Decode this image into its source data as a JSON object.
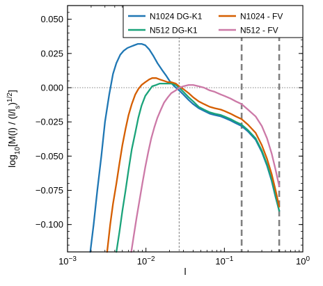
{
  "chart_data": {
    "type": "line",
    "xlabel": "l",
    "ylabel": "log10[M(l) / (l/ls)^1/2]",
    "x_scale": "log",
    "xlim": [
      0.001,
      1
    ],
    "ylim": [
      -0.12,
      0.06
    ],
    "x_tick_labels": [
      {
        "base": "10",
        "exp": "−3",
        "value": 0.001
      },
      {
        "base": "10",
        "exp": "−2",
        "value": 0.01
      },
      {
        "base": "10",
        "exp": "−1",
        "value": 0.1
      },
      {
        "base": "10",
        "exp": "0",
        "value": 1
      }
    ],
    "y_ticks": [
      0.05,
      0.025,
      0.0,
      -0.025,
      -0.05,
      -0.075,
      -0.1
    ],
    "y_tick_labels": [
      "0.050",
      "0.025",
      "0.000",
      "−0.025",
      "−0.050",
      "−0.075",
      "−0.100"
    ],
    "reference_lines": [
      {
        "orientation": "horizontal",
        "value": 0.0,
        "style": "dotted",
        "color": "#808080"
      },
      {
        "orientation": "vertical",
        "value": 0.0265,
        "style": "dashed-thin",
        "color": "#808080"
      },
      {
        "orientation": "vertical",
        "value": 0.166,
        "style": "dashed-thick",
        "color": "#808080"
      },
      {
        "orientation": "vertical",
        "value": 0.5,
        "style": "dashed-thick",
        "color": "#808080"
      }
    ],
    "legend": {
      "placement": "top-right",
      "columns": 2
    },
    "series": [
      {
        "name": "N1024 DG-K1",
        "color": "#1f77b4",
        "x": [
          0.00195,
          0.00215,
          0.0024,
          0.0027,
          0.003,
          0.0034,
          0.0038,
          0.0042,
          0.0047,
          0.0052,
          0.0058,
          0.0064,
          0.0071,
          0.0079,
          0.0088,
          0.0098,
          0.011,
          0.0125,
          0.014,
          0.016,
          0.018,
          0.02,
          0.023,
          0.0265,
          0.03,
          0.035,
          0.04,
          0.047,
          0.055,
          0.065,
          0.075,
          0.09,
          0.1,
          0.12,
          0.14,
          0.166,
          0.2,
          0.25,
          0.3,
          0.35,
          0.4,
          0.45,
          0.5
        ],
        "y": [
          -0.12,
          -0.1,
          -0.075,
          -0.05,
          -0.025,
          -0.005,
          0.01,
          0.018,
          0.024,
          0.027,
          0.029,
          0.03,
          0.031,
          0.032,
          0.032,
          0.031,
          0.028,
          0.023,
          0.018,
          0.013,
          0.009,
          0.005,
          0.001,
          -0.002,
          -0.005,
          -0.009,
          -0.012,
          -0.015,
          -0.017,
          -0.019,
          -0.02,
          -0.021,
          -0.022,
          -0.024,
          -0.026,
          -0.028,
          -0.032,
          -0.038,
          -0.047,
          -0.057,
          -0.068,
          -0.08,
          -0.09
        ]
      },
      {
        "name": "N512 DG-K1",
        "color": "#1aa37a",
        "x": [
          0.0042,
          0.0046,
          0.005,
          0.0055,
          0.006,
          0.0066,
          0.0073,
          0.008,
          0.0088,
          0.0098,
          0.011,
          0.012,
          0.0135,
          0.015,
          0.017,
          0.019,
          0.021,
          0.024,
          0.0265,
          0.03,
          0.035,
          0.04,
          0.047,
          0.055,
          0.065,
          0.075,
          0.09,
          0.1,
          0.12,
          0.14,
          0.166,
          0.2,
          0.25,
          0.3,
          0.35,
          0.4,
          0.45,
          0.5
        ],
        "y": [
          -0.12,
          -0.105,
          -0.09,
          -0.075,
          -0.06,
          -0.045,
          -0.033,
          -0.022,
          -0.013,
          -0.006,
          -0.002,
          0.001,
          0.002,
          0.003,
          0.003,
          0.003,
          0.003,
          0.002,
          0.0,
          -0.003,
          -0.007,
          -0.01,
          -0.014,
          -0.016,
          -0.018,
          -0.019,
          -0.02,
          -0.021,
          -0.023,
          -0.025,
          -0.027,
          -0.031,
          -0.037,
          -0.046,
          -0.056,
          -0.067,
          -0.079,
          -0.09
        ]
      },
      {
        "name": "N1024 - FV",
        "color": "#d55e00",
        "x": [
          0.0032,
          0.0035,
          0.0038,
          0.0042,
          0.0046,
          0.005,
          0.0055,
          0.006,
          0.0066,
          0.0073,
          0.008,
          0.0088,
          0.0098,
          0.011,
          0.012,
          0.0135,
          0.015,
          0.017,
          0.019,
          0.021,
          0.024,
          0.0265,
          0.03,
          0.035,
          0.04,
          0.047,
          0.055,
          0.065,
          0.075,
          0.09,
          0.1,
          0.12,
          0.14,
          0.166,
          0.2,
          0.25,
          0.3,
          0.35,
          0.4,
          0.45,
          0.5
        ],
        "y": [
          -0.12,
          -0.1,
          -0.085,
          -0.07,
          -0.055,
          -0.042,
          -0.03,
          -0.02,
          -0.012,
          -0.005,
          -0.001,
          0.002,
          0.004,
          0.006,
          0.007,
          0.007,
          0.006,
          0.005,
          0.004,
          0.004,
          0.003,
          0.001,
          -0.001,
          -0.004,
          -0.007,
          -0.01,
          -0.012,
          -0.014,
          -0.015,
          -0.016,
          -0.017,
          -0.019,
          -0.021,
          -0.023,
          -0.027,
          -0.033,
          -0.042,
          -0.052,
          -0.063,
          -0.075,
          -0.087
        ]
      },
      {
        "name": "N512 - FV",
        "color": "#cc79a7",
        "x": [
          0.0065,
          0.007,
          0.0076,
          0.0083,
          0.009,
          0.0098,
          0.0107,
          0.0117,
          0.0128,
          0.014,
          0.0155,
          0.017,
          0.019,
          0.021,
          0.024,
          0.0265,
          0.03,
          0.035,
          0.04,
          0.047,
          0.055,
          0.065,
          0.075,
          0.09,
          0.1,
          0.12,
          0.14,
          0.166,
          0.2,
          0.25,
          0.3,
          0.35,
          0.4,
          0.45,
          0.5
        ],
        "y": [
          -0.12,
          -0.108,
          -0.095,
          -0.082,
          -0.07,
          -0.058,
          -0.047,
          -0.037,
          -0.029,
          -0.022,
          -0.016,
          -0.011,
          -0.007,
          -0.004,
          -0.002,
          0.0,
          0.001,
          0.002,
          0.002,
          0.001,
          0.0,
          -0.002,
          -0.003,
          -0.005,
          -0.006,
          -0.008,
          -0.01,
          -0.012,
          -0.016,
          -0.021,
          -0.028,
          -0.037,
          -0.048,
          -0.06,
          -0.072
        ]
      }
    ]
  }
}
